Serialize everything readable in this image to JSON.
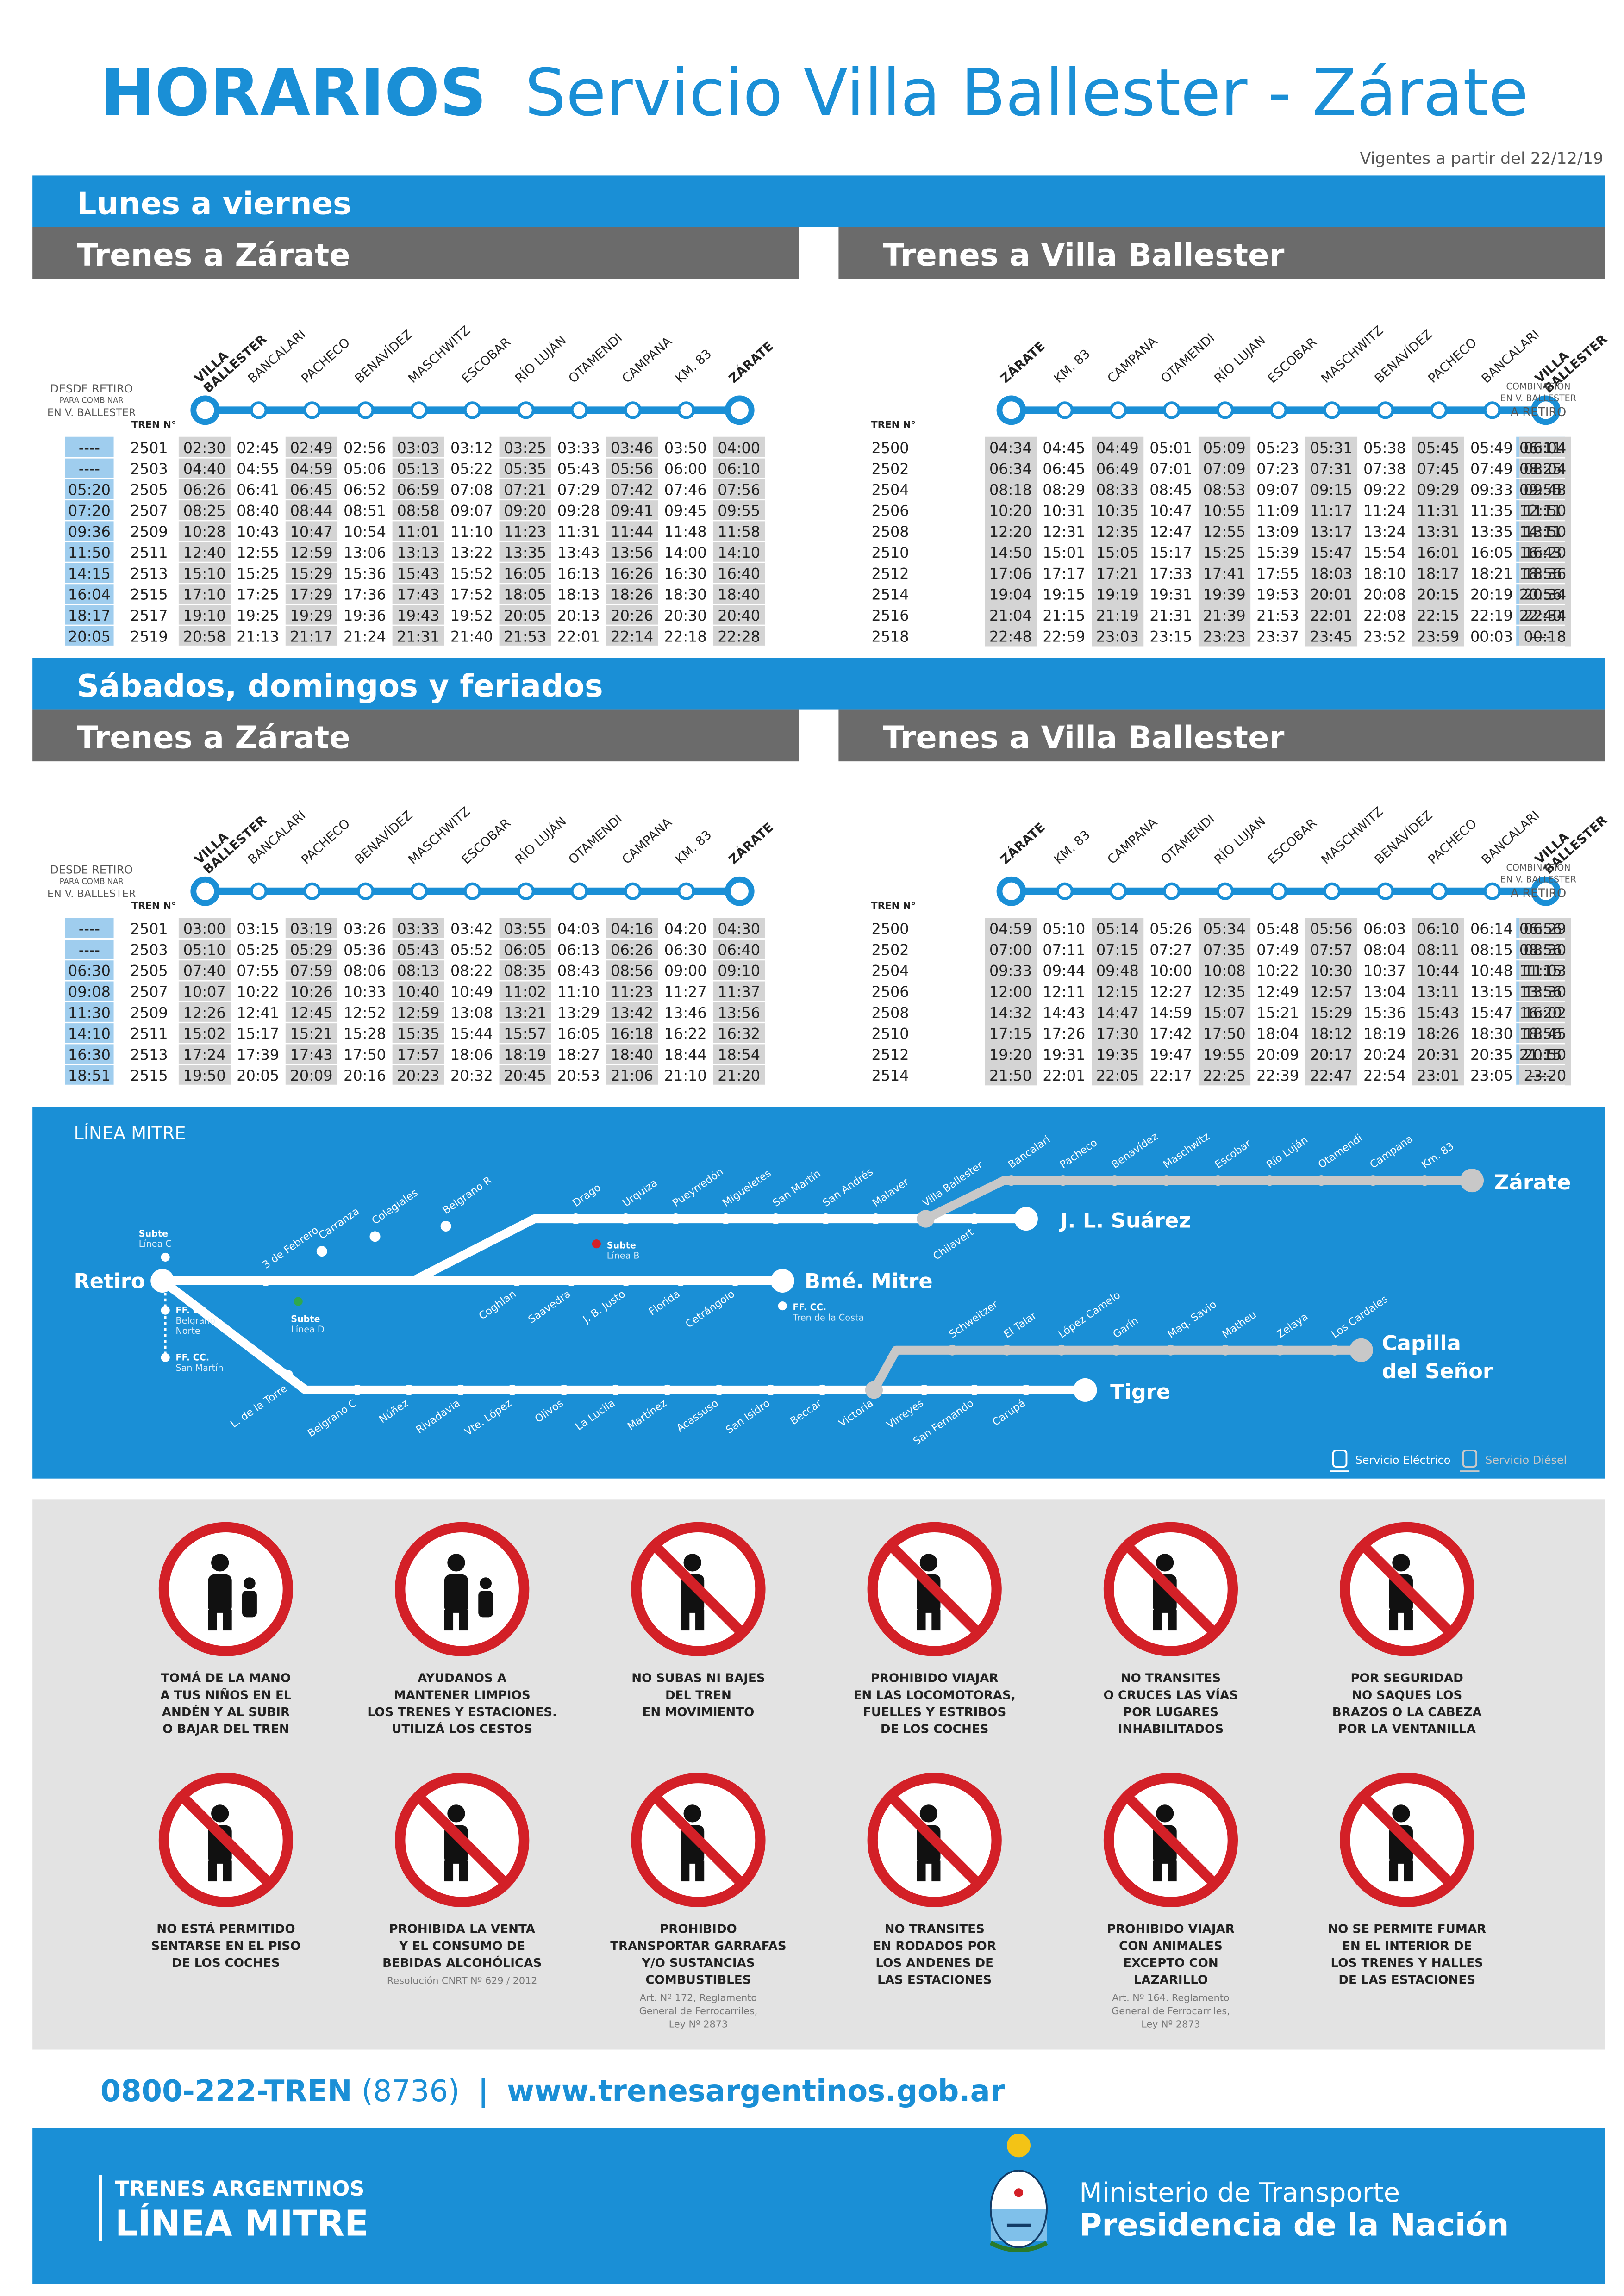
{
  "header": {
    "title_strong": "HORARIOS",
    "title_rest": "Servicio Villa Ballester - Zárate",
    "valid_from": "Vigentes a partir del 22/12/19"
  },
  "colors": {
    "blue": "#1a8fd6",
    "dark_blue": "#0f73b9",
    "gray_bar": "#6b6b6b",
    "light_blue_cell": "#9fcdee",
    "gray_cell": "#d4d4d4",
    "panel_gray": "#e3e3e3",
    "red": "#d32027"
  },
  "labels": {
    "desde_retiro": "DESDE RETIRO",
    "para_combinar": "PARA COMBINAR",
    "en_v_ballester": "EN V. BALLESTER",
    "tren_n": "TREN N°",
    "combinacion": "COMBINACIÓN",
    "combinacion_sub": "EN V. BALLESTER",
    "a_retiro": "A RETIRO"
  },
  "stations_to_zarate": [
    "VILLA BALLESTER",
    "BANCALARI",
    "PACHECO",
    "BENAVÍDEZ",
    "MASCHWITZ",
    "ESCOBAR",
    "RÍO LUJÁN",
    "OTAMENDI",
    "CAMPANA",
    "KM. 83",
    "ZÁRATE"
  ],
  "stations_to_ballester": [
    "ZÁRATE",
    "KM. 83",
    "CAMPANA",
    "OTAMENDI",
    "RÍO LUJÁN",
    "ESCOBAR",
    "MASCHWITZ",
    "BENAVÍDEZ",
    "PACHECO",
    "BANCALARI",
    "VILLA BALLESTER"
  ],
  "weekday": {
    "title": "Lunes a viernes",
    "to_zarate": {
      "title": "Trenes a Zárate",
      "rows": [
        {
          "retiro": "----",
          "train": "2501",
          "times": [
            "02:30",
            "02:45",
            "02:49",
            "02:56",
            "03:03",
            "03:12",
            "03:25",
            "03:33",
            "03:46",
            "03:50",
            "04:00"
          ]
        },
        {
          "retiro": "----",
          "train": "2503",
          "times": [
            "04:40",
            "04:55",
            "04:59",
            "05:06",
            "05:13",
            "05:22",
            "05:35",
            "05:43",
            "05:56",
            "06:00",
            "06:10"
          ]
        },
        {
          "retiro": "05:20",
          "train": "2505",
          "times": [
            "06:26",
            "06:41",
            "06:45",
            "06:52",
            "06:59",
            "07:08",
            "07:21",
            "07:29",
            "07:42",
            "07:46",
            "07:56"
          ]
        },
        {
          "retiro": "07:20",
          "train": "2507",
          "times": [
            "08:25",
            "08:40",
            "08:44",
            "08:51",
            "08:58",
            "09:07",
            "09:20",
            "09:28",
            "09:41",
            "09:45",
            "09:55"
          ]
        },
        {
          "retiro": "09:36",
          "train": "2509",
          "times": [
            "10:28",
            "10:43",
            "10:47",
            "10:54",
            "11:01",
            "11:10",
            "11:23",
            "11:31",
            "11:44",
            "11:48",
            "11:58"
          ]
        },
        {
          "retiro": "11:50",
          "train": "2511",
          "times": [
            "12:40",
            "12:55",
            "12:59",
            "13:06",
            "13:13",
            "13:22",
            "13:35",
            "13:43",
            "13:56",
            "14:00",
            "14:10"
          ]
        },
        {
          "retiro": "14:15",
          "train": "2513",
          "times": [
            "15:10",
            "15:25",
            "15:29",
            "15:36",
            "15:43",
            "15:52",
            "16:05",
            "16:13",
            "16:26",
            "16:30",
            "16:40"
          ]
        },
        {
          "retiro": "16:04",
          "train": "2515",
          "times": [
            "17:10",
            "17:25",
            "17:29",
            "17:36",
            "17:43",
            "17:52",
            "18:05",
            "18:13",
            "18:26",
            "18:30",
            "18:40"
          ]
        },
        {
          "retiro": "18:17",
          "train": "2517",
          "times": [
            "19:10",
            "19:25",
            "19:29",
            "19:36",
            "19:43",
            "19:52",
            "20:05",
            "20:13",
            "20:26",
            "20:30",
            "20:40"
          ]
        },
        {
          "retiro": "20:05",
          "train": "2519",
          "times": [
            "20:58",
            "21:13",
            "21:17",
            "21:24",
            "21:31",
            "21:40",
            "21:53",
            "22:01",
            "22:14",
            "22:18",
            "22:28"
          ]
        }
      ]
    },
    "to_ballester": {
      "title": "Trenes a Villa Ballester",
      "rows": [
        {
          "train": "2500",
          "times": [
            "04:34",
            "04:45",
            "04:49",
            "05:01",
            "05:09",
            "05:23",
            "05:31",
            "05:38",
            "05:45",
            "05:49",
            "06:04"
          ],
          "retiro": "06:11"
        },
        {
          "train": "2502",
          "times": [
            "06:34",
            "06:45",
            "06:49",
            "07:01",
            "07:09",
            "07:23",
            "07:31",
            "07:38",
            "07:45",
            "07:49",
            "08:04"
          ],
          "retiro": "08:25"
        },
        {
          "train": "2504",
          "times": [
            "08:18",
            "08:29",
            "08:33",
            "08:45",
            "08:53",
            "09:07",
            "09:15",
            "09:22",
            "09:29",
            "09:33",
            "09:48"
          ],
          "retiro": "09:55"
        },
        {
          "train": "2506",
          "times": [
            "10:20",
            "10:31",
            "10:35",
            "10:47",
            "10:55",
            "11:09",
            "11:17",
            "11:24",
            "11:31",
            "11:35",
            "11:50"
          ],
          "retiro": "12:11"
        },
        {
          "train": "2508",
          "times": [
            "12:20",
            "12:31",
            "12:35",
            "12:47",
            "12:55",
            "13:09",
            "13:17",
            "13:24",
            "13:31",
            "13:35",
            "13:50"
          ],
          "retiro": "14:11"
        },
        {
          "train": "2510",
          "times": [
            "14:50",
            "15:01",
            "15:05",
            "15:17",
            "15:25",
            "15:39",
            "15:47",
            "15:54",
            "16:01",
            "16:05",
            "16:20"
          ],
          "retiro": "16:43"
        },
        {
          "train": "2512",
          "times": [
            "17:06",
            "17:17",
            "17:21",
            "17:33",
            "17:41",
            "17:55",
            "18:03",
            "18:10",
            "18:17",
            "18:21",
            "18:36"
          ],
          "retiro": "18:56"
        },
        {
          "train": "2514",
          "times": [
            "19:04",
            "19:15",
            "19:19",
            "19:31",
            "19:39",
            "19:53",
            "20:01",
            "20:08",
            "20:15",
            "20:19",
            "20:34"
          ],
          "retiro": "20:56"
        },
        {
          "train": "2516",
          "times": [
            "21:04",
            "21:15",
            "21:19",
            "21:31",
            "21:39",
            "21:53",
            "22:01",
            "22:08",
            "22:15",
            "22:19",
            "22:34"
          ],
          "retiro": "22:40"
        },
        {
          "train": "2518",
          "times": [
            "22:48",
            "22:59",
            "23:03",
            "23:15",
            "23:23",
            "23:37",
            "23:45",
            "23:52",
            "23:59",
            "00:03",
            "00:18"
          ],
          "retiro": "----"
        }
      ]
    }
  },
  "weekend": {
    "title": "Sábados, domingos y feriados",
    "to_zarate": {
      "title": "Trenes a Zárate",
      "rows": [
        {
          "retiro": "----",
          "train": "2501",
          "times": [
            "03:00",
            "03:15",
            "03:19",
            "03:26",
            "03:33",
            "03:42",
            "03:55",
            "04:03",
            "04:16",
            "04:20",
            "04:30"
          ]
        },
        {
          "retiro": "----",
          "train": "2503",
          "times": [
            "05:10",
            "05:25",
            "05:29",
            "05:36",
            "05:43",
            "05:52",
            "06:05",
            "06:13",
            "06:26",
            "06:30",
            "06:40"
          ]
        },
        {
          "retiro": "06:30",
          "train": "2505",
          "times": [
            "07:40",
            "07:55",
            "07:59",
            "08:06",
            "08:13",
            "08:22",
            "08:35",
            "08:43",
            "08:56",
            "09:00",
            "09:10"
          ]
        },
        {
          "retiro": "09:08",
          "train": "2507",
          "times": [
            "10:07",
            "10:22",
            "10:26",
            "10:33",
            "10:40",
            "10:49",
            "11:02",
            "11:10",
            "11:23",
            "11:27",
            "11:37"
          ]
        },
        {
          "retiro": "11:30",
          "train": "2509",
          "times": [
            "12:26",
            "12:41",
            "12:45",
            "12:52",
            "12:59",
            "13:08",
            "13:21",
            "13:29",
            "13:42",
            "13:46",
            "13:56"
          ]
        },
        {
          "retiro": "14:10",
          "train": "2511",
          "times": [
            "15:02",
            "15:17",
            "15:21",
            "15:28",
            "15:35",
            "15:44",
            "15:57",
            "16:05",
            "16:18",
            "16:22",
            "16:32"
          ]
        },
        {
          "retiro": "16:30",
          "train": "2513",
          "times": [
            "17:24",
            "17:39",
            "17:43",
            "17:50",
            "17:57",
            "18:06",
            "18:19",
            "18:27",
            "18:40",
            "18:44",
            "18:54"
          ]
        },
        {
          "retiro": "18:51",
          "train": "2515",
          "times": [
            "19:50",
            "20:05",
            "20:09",
            "20:16",
            "20:23",
            "20:32",
            "20:45",
            "20:53",
            "21:06",
            "21:10",
            "21:20"
          ]
        }
      ]
    },
    "to_ballester": {
      "title": "Trenes a Villa Ballester",
      "rows": [
        {
          "train": "2500",
          "times": [
            "04:59",
            "05:10",
            "05:14",
            "05:26",
            "05:34",
            "05:48",
            "05:56",
            "06:03",
            "06:10",
            "06:14",
            "06:29"
          ],
          "retiro": "06:56"
        },
        {
          "train": "2502",
          "times": [
            "07:00",
            "07:11",
            "07:15",
            "07:27",
            "07:35",
            "07:49",
            "07:57",
            "08:04",
            "08:11",
            "08:15",
            "08:30"
          ],
          "retiro": "08:56"
        },
        {
          "train": "2504",
          "times": [
            "09:33",
            "09:44",
            "09:48",
            "10:00",
            "10:08",
            "10:22",
            "10:30",
            "10:37",
            "10:44",
            "10:48",
            "11:03"
          ],
          "retiro": "11:15"
        },
        {
          "train": "2506",
          "times": [
            "12:00",
            "12:11",
            "12:15",
            "12:27",
            "12:35",
            "12:49",
            "12:57",
            "13:04",
            "13:11",
            "13:15",
            "13:30"
          ],
          "retiro": "13:56"
        },
        {
          "train": "2508",
          "times": [
            "14:32",
            "14:43",
            "14:47",
            "14:59",
            "15:07",
            "15:21",
            "15:29",
            "15:36",
            "15:43",
            "15:47",
            "16:02"
          ],
          "retiro": "16:20"
        },
        {
          "train": "2510",
          "times": [
            "17:15",
            "17:26",
            "17:30",
            "17:42",
            "17:50",
            "18:04",
            "18:12",
            "18:19",
            "18:26",
            "18:30",
            "18:45"
          ],
          "retiro": "18:56"
        },
        {
          "train": "2512",
          "times": [
            "19:20",
            "19:31",
            "19:35",
            "19:47",
            "19:55",
            "20:09",
            "20:17",
            "20:24",
            "20:31",
            "20:35",
            "20:50"
          ],
          "retiro": "21:15"
        },
        {
          "train": "2514",
          "times": [
            "21:50",
            "22:01",
            "22:05",
            "22:17",
            "22:25",
            "22:39",
            "22:47",
            "22:54",
            "23:01",
            "23:05",
            "23:20"
          ],
          "retiro": "----"
        }
      ]
    }
  },
  "map": {
    "title": "LÍNEA MITRE",
    "terminals": {
      "retiro": "Retiro",
      "zarate": "Zárate",
      "jl_suarez": "J. L. Suárez",
      "bme_mitre": "Bmé. Mitre",
      "tigre": "Tigre",
      "capilla": "Capilla",
      "del_senor": "del Señor"
    },
    "branch_suarez": [
      "3 de Febrero",
      "Carranza",
      "Colegiales",
      "Belgrano R",
      "Drago",
      "Urquiza",
      "Pueyrredón",
      "Migueletes",
      "San Martín",
      "San Andrés",
      "Malaver",
      "Villa Ballester",
      "Chilavert"
    ],
    "branch_zarate": [
      "Bancalari",
      "Pacheco",
      "Benavídez",
      "Maschwitz",
      "Escobar",
      "Río Luján",
      "Otamendi",
      "Campana",
      "Km. 83"
    ],
    "branch_mitre": [
      "Coghlan",
      "Saavedra",
      "J. B. Justo",
      "Florida",
      "Cetrángolo"
    ],
    "branch_tigre": [
      "L. de la Torre",
      "Belgrano C",
      "Núñez",
      "Rivadavia",
      "Vte. López",
      "Olivos",
      "La Lucila",
      "Martínez",
      "Acassuso",
      "San Isidro",
      "Beccar",
      "Victoria",
      "Virreyes",
      "San Fernando",
      "Carupá"
    ],
    "branch_capilla": [
      "Schweitzer",
      "El Talar",
      "López Camelo",
      "Garín",
      "Maq. Savio",
      "Matheu",
      "Zelaya",
      "Los Cardales"
    ],
    "subte_c": "Subte",
    "subte_c2": "Línea C",
    "subte_b": "Subte",
    "subte_b2": "Línea B",
    "subte_d": "Subte",
    "subte_d2": "Línea D",
    "ffcc_belgrano": "FF. CC.",
    "ffcc_belgrano2": "Belgrano",
    "ffcc_belgrano3": "Norte",
    "ffcc_sanmartin": "FF. CC.",
    "ffcc_sanmartin2": "San Martín",
    "ffcc_costa": "FF. CC.",
    "ffcc_costa2": "Tren de la Costa",
    "legend_electric": "Servicio Eléctrico",
    "legend_diesel": "Servicio Diésel"
  },
  "rules": [
    {
      "icon": "holding-hand-icon",
      "lines": [
        "TOMÁ DE LA MANO",
        "A TUS NIÑOS EN EL",
        "ANDÉN Y AL SUBIR",
        "O BAJAR DEL TREN"
      ],
      "small": []
    },
    {
      "icon": "trash-bin-icon",
      "lines": [
        "AYUDANOS A",
        "MANTENER LIMPIOS",
        "LOS TRENES Y ESTACIONES.",
        "UTILIZÁ LOS CESTOS"
      ],
      "small": []
    },
    {
      "icon": "moving-train-icon",
      "lines": [
        "NO SUBAS NI BAJES",
        "DEL TREN",
        "EN MOVIMIENTO"
      ],
      "small": []
    },
    {
      "icon": "locomotive-ride-icon",
      "lines": [
        "PROHIBIDO VIAJAR",
        "EN LAS LOCOMOTORAS,",
        "FUELLES Y ESTRIBOS",
        "DE LOS COCHES"
      ],
      "small": []
    },
    {
      "icon": "track-crossing-icon",
      "lines": [
        "NO TRANSITES",
        "O CRUCES LAS VÍAS",
        "POR LUGARES",
        "INHABILITADOS"
      ],
      "small": []
    },
    {
      "icon": "window-lean-icon",
      "lines": [
        "POR SEGURIDAD",
        "NO SAQUES LOS",
        "BRAZOS O LA CABEZA",
        "POR LA VENTANILLA"
      ],
      "small": []
    },
    {
      "icon": "floor-sitting-icon",
      "lines": [
        "NO ESTÁ PERMITIDO",
        "SENTARSE EN EL PISO",
        "DE LOS COCHES"
      ],
      "small": []
    },
    {
      "icon": "alcohol-icon",
      "lines": [
        "PROHIBIDA LA VENTA",
        "Y EL CONSUMO DE",
        "BEBIDAS ALCOHÓLICAS"
      ],
      "small": [
        "Resolución CNRT Nº 629 / 2012"
      ]
    },
    {
      "icon": "gas-canister-icon",
      "lines": [
        "PROHIBIDO",
        "TRANSPORTAR GARRAFAS",
        "Y/O SUSTANCIAS",
        "COMBUSTIBLES"
      ],
      "small": [
        "Art. Nº 172, Reglamento",
        "General de Ferrocarriles,",
        "Ley Nº 2873"
      ]
    },
    {
      "icon": "bicycle-icon",
      "lines": [
        "NO TRANSITES",
        "EN RODADOS POR",
        "LOS ANDENES DE",
        "LAS ESTACIONES"
      ],
      "small": []
    },
    {
      "icon": "dog-icon",
      "lines": [
        "PROHIBIDO VIAJAR",
        "CON ANIMALES",
        "EXCEPTO CON",
        "LAZARILLO"
      ],
      "small": [
        "Art. Nº 164. Reglamento",
        "General de Ferrocarriles,",
        "Ley Nº 2873"
      ]
    },
    {
      "icon": "no-smoking-icon",
      "lines": [
        "NO SE PERMITE FUMAR",
        "EN EL INTERIOR DE",
        "LOS TRENES Y HALLES",
        "DE LAS ESTACIONES"
      ],
      "small": []
    }
  ],
  "contact": {
    "phone_bold": "0800-222-TREN",
    "phone_digits": "(8736)",
    "separator": "|",
    "website": "www.trenesargentinos.gob.ar"
  },
  "footer": {
    "brand_top": "TRENES ARGENTINOS",
    "brand_bottom": "LÍNEA MITRE",
    "ministry": "Ministerio de Transporte",
    "presidency": "Presidencia de la Nación"
  }
}
